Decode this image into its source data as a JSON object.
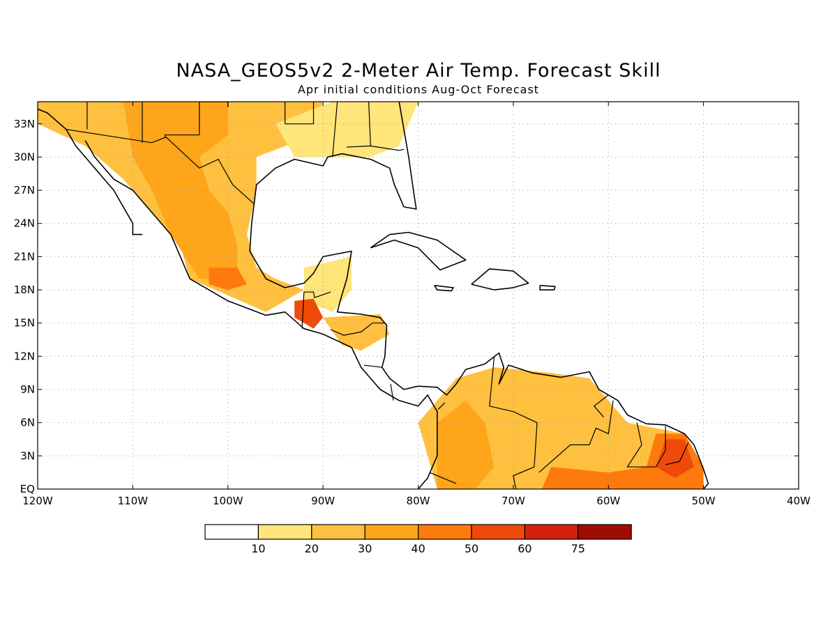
{
  "title": "NASA_GEOS5v2 2-Meter Air Temp. Forecast Skill",
  "subtitle": "Apr initial conditions  Aug-Oct Forecast",
  "map": {
    "lon_range": [
      -120,
      -40
    ],
    "lat_range": [
      0,
      35
    ],
    "x_tick_labels": [
      "120W",
      "110W",
      "100W",
      "90W",
      "80W",
      "70W",
      "60W",
      "50W",
      "40W"
    ],
    "y_tick_labels": [
      "EQ",
      "3N",
      "6N",
      "9N",
      "12N",
      "15N",
      "18N",
      "21N",
      "24N",
      "27N",
      "30N",
      "33N"
    ],
    "grid": true
  },
  "legend": {
    "levels": [
      "10",
      "20",
      "30",
      "40",
      "50",
      "60",
      "75"
    ],
    "colors": [
      "#ffffff",
      "#ffe57a",
      "#ffc040",
      "#ffa51a",
      "#ff7a0d",
      "#f04a0a",
      "#d4200a",
      "#a00c05"
    ]
  },
  "skill_regions": [
    {
      "name": "mexico-north",
      "level": 2,
      "lonlat": [
        [
          -120,
          35
        ],
        [
          -90,
          35
        ],
        [
          -91,
          32
        ],
        [
          -97,
          30
        ],
        [
          -97,
          27
        ],
        [
          -98,
          23
        ],
        [
          -97,
          20
        ],
        [
          -95,
          19
        ],
        [
          -92,
          18
        ],
        [
          -96,
          16
        ],
        [
          -104,
          19
        ],
        [
          -105,
          22
        ],
        [
          -108,
          25
        ],
        [
          -111,
          28
        ],
        [
          -115,
          31
        ],
        [
          -120,
          33
        ]
      ]
    },
    {
      "name": "mexico-core",
      "level": 3,
      "lonlat": [
        [
          -111,
          35
        ],
        [
          -100,
          35
        ],
        [
          -100,
          32
        ],
        [
          -103,
          30
        ],
        [
          -102,
          27
        ],
        [
          -100,
          25
        ],
        [
          -99,
          22
        ],
        [
          -99,
          19
        ],
        [
          -103,
          19
        ],
        [
          -106,
          23
        ],
        [
          -108,
          27
        ],
        [
          -110,
          30
        ]
      ]
    },
    {
      "name": "us-southeast",
      "level": 1,
      "lonlat": [
        [
          -89,
          35
        ],
        [
          -80,
          35
        ],
        [
          -82,
          31
        ],
        [
          -85,
          30
        ],
        [
          -89,
          30
        ],
        [
          -93,
          30
        ],
        [
          -95,
          33
        ]
      ]
    },
    {
      "name": "yucatan",
      "level": 1,
      "lonlat": [
        [
          -92,
          20
        ],
        [
          -87,
          21
        ],
        [
          -87,
          18
        ],
        [
          -89,
          16
        ],
        [
          -92,
          17
        ]
      ]
    },
    {
      "name": "south-mexico-hot",
      "level": 4,
      "lonlat": [
        [
          -102,
          20
        ],
        [
          -99,
          20
        ],
        [
          -98,
          18.5
        ],
        [
          -100,
          18
        ],
        [
          -102,
          18.5
        ]
      ]
    },
    {
      "name": "guatemala-hot",
      "level": 5,
      "lonlat": [
        [
          -93,
          17
        ],
        [
          -91,
          17.2
        ],
        [
          -90,
          15.5
        ],
        [
          -91,
          14.5
        ],
        [
          -93,
          15.5
        ]
      ]
    },
    {
      "name": "central-america",
      "level": 2,
      "lonlat": [
        [
          -90,
          15.5
        ],
        [
          -84,
          15.8
        ],
        [
          -83,
          14
        ],
        [
          -86,
          12.5
        ],
        [
          -88,
          13
        ]
      ]
    },
    {
      "name": "sa-main",
      "level": 2,
      "lonlat": [
        [
          -78,
          8
        ],
        [
          -76,
          10
        ],
        [
          -72,
          11
        ],
        [
          -66,
          10.5
        ],
        [
          -62,
          10
        ],
        [
          -60,
          8
        ],
        [
          -58,
          6
        ],
        [
          -52,
          5
        ],
        [
          -50,
          1
        ],
        [
          -50,
          0
        ],
        [
          -78,
          0
        ],
        [
          -79,
          3
        ],
        [
          -80,
          6
        ]
      ]
    },
    {
      "name": "sa-west-orange",
      "level": 3,
      "lonlat": [
        [
          -78,
          6
        ],
        [
          -75,
          8
        ],
        [
          -73,
          6
        ],
        [
          -72,
          2
        ],
        [
          -74,
          0
        ],
        [
          -78,
          0
        ],
        [
          -78,
          3
        ]
      ]
    },
    {
      "name": "sa-southeast-hot",
      "level": 4,
      "lonlat": [
        [
          -66,
          2
        ],
        [
          -60,
          1.5
        ],
        [
          -56,
          2
        ],
        [
          -55,
          5
        ],
        [
          -52,
          5
        ],
        [
          -50,
          2
        ],
        [
          -50,
          0
        ],
        [
          -67,
          0
        ]
      ]
    },
    {
      "name": "amapa-hot",
      "level": 5,
      "lonlat": [
        [
          -54,
          4.5
        ],
        [
          -52,
          4.5
        ],
        [
          -51,
          2
        ],
        [
          -53,
          1
        ],
        [
          -55,
          2
        ]
      ]
    }
  ],
  "coastlines": [
    [
      [
        -122,
        35
      ],
      [
        -119,
        34
      ],
      [
        -117,
        32.5
      ],
      [
        -116,
        31
      ],
      [
        -114,
        29
      ],
      [
        -112,
        27
      ],
      [
        -110,
        24
      ],
      [
        -110,
        23
      ],
      [
        -109,
        23
      ]
    ],
    [
      [
        -115,
        31.5
      ],
      [
        -114,
        30
      ],
      [
        -112,
        28
      ],
      [
        -110,
        27
      ],
      [
        -109,
        26
      ],
      [
        -108,
        25
      ],
      [
        -106,
        23
      ],
      [
        -105,
        21
      ],
      [
        -104,
        19
      ],
      [
        -100,
        17
      ],
      [
        -96,
        15.7
      ],
      [
        -94,
        16
      ],
      [
        -92,
        14.5
      ],
      [
        -90,
        14
      ],
      [
        -88,
        13.2
      ],
      [
        -87,
        12.8
      ],
      [
        -86,
        11
      ],
      [
        -85,
        10
      ],
      [
        -84,
        9
      ],
      [
        -82,
        8
      ],
      [
        -80,
        7.5
      ],
      [
        -79,
        8.5
      ],
      [
        -78,
        7
      ],
      [
        -78,
        3
      ],
      [
        -79,
        1
      ],
      [
        -80,
        0
      ]
    ],
    [
      [
        -82,
        35
      ],
      [
        -81,
        30
      ],
      [
        -80.5,
        27
      ],
      [
        -80.2,
        25.3
      ],
      [
        -81.5,
        25.5
      ],
      [
        -82.5,
        27.5
      ],
      [
        -83,
        29
      ],
      [
        -85,
        29.8
      ],
      [
        -88,
        30.3
      ],
      [
        -89.5,
        30
      ],
      [
        -90,
        29.2
      ],
      [
        -93,
        29.8
      ],
      [
        -95,
        29
      ],
      [
        -97,
        27.5
      ],
      [
        -97.5,
        24
      ],
      [
        -97.7,
        21.5
      ],
      [
        -96,
        19
      ],
      [
        -94,
        18.2
      ],
      [
        -92,
        18.6
      ],
      [
        -91,
        19.5
      ],
      [
        -90,
        21
      ],
      [
        -87,
        21.5
      ],
      [
        -87.5,
        19
      ],
      [
        -88.2,
        17
      ],
      [
        -88.5,
        16
      ],
      [
        -86,
        15.8
      ],
      [
        -84,
        15.5
      ],
      [
        -83.3,
        14.8
      ],
      [
        -83.5,
        12
      ],
      [
        -83.8,
        11
      ],
      [
        -83,
        10
      ],
      [
        -81.5,
        9
      ],
      [
        -80,
        9.3
      ],
      [
        -78,
        9.2
      ],
      [
        -77,
        8.5
      ],
      [
        -76,
        9.5
      ],
      [
        -75,
        10.8
      ],
      [
        -73,
        11.3
      ],
      [
        -71.5,
        12.3
      ],
      [
        -71,
        11
      ],
      [
        -71.5,
        9.5
      ],
      [
        -70.5,
        11.2
      ],
      [
        -68,
        10.5
      ],
      [
        -65,
        10.1
      ],
      [
        -62,
        10.6
      ],
      [
        -61,
        9
      ],
      [
        -59,
        8
      ],
      [
        -58,
        6.7
      ],
      [
        -56,
        5.9
      ],
      [
        -54,
        5.8
      ],
      [
        -52,
        5
      ],
      [
        -51,
        4
      ],
      [
        -50,
        1.8
      ],
      [
        -49.5,
        0.5
      ],
      [
        -50,
        0
      ]
    ],
    [
      [
        -85,
        21.8
      ],
      [
        -83,
        23
      ],
      [
        -81,
        23.2
      ],
      [
        -78,
        22.5
      ],
      [
        -75,
        20.7
      ],
      [
        -77.7,
        19.8
      ],
      [
        -80,
        21.8
      ],
      [
        -82.5,
        22.5
      ],
      [
        -85,
        21.8
      ]
    ],
    [
      [
        -74.4,
        18.5
      ],
      [
        -72.5,
        19.9
      ],
      [
        -70,
        19.7
      ],
      [
        -68.4,
        18.6
      ],
      [
        -70,
        18.2
      ],
      [
        -72,
        18
      ],
      [
        -74.4,
        18.5
      ]
    ],
    [
      [
        -78.3,
        18.4
      ],
      [
        -76.3,
        18.2
      ],
      [
        -76.5,
        17.9
      ],
      [
        -78,
        18
      ],
      [
        -78.3,
        18.4
      ]
    ],
    [
      [
        -67.2,
        18.4
      ],
      [
        -65.6,
        18.3
      ],
      [
        -65.7,
        18
      ],
      [
        -67.2,
        18
      ],
      [
        -67.2,
        18.4
      ]
    ]
  ],
  "borders": [
    [
      [
        -117,
        32.5
      ],
      [
        -108,
        31.3
      ],
      [
        -106.5,
        31.8
      ],
      [
        -103,
        29
      ],
      [
        -101,
        29.8
      ],
      [
        -99.5,
        27.5
      ],
      [
        -97.3,
        25.8
      ]
    ],
    [
      [
        -92.2,
        14.5
      ],
      [
        -92,
        17.8
      ],
      [
        -91,
        17.8
      ],
      [
        -90.9,
        17.3
      ],
      [
        -89.2,
        17.8
      ]
    ],
    [
      [
        -89.2,
        14.4
      ],
      [
        -87.8,
        13.9
      ],
      [
        -86,
        14.2
      ],
      [
        -84.8,
        15
      ],
      [
        -83.5,
        15
      ]
    ],
    [
      [
        -83.8,
        11
      ],
      [
        -85.7,
        11.2
      ]
    ],
    [
      [
        -82.9,
        9.5
      ],
      [
        -82.6,
        8
      ]
    ],
    [
      [
        -77.2,
        7.8
      ],
      [
        -77.9,
        7.2
      ]
    ],
    [
      [
        -72,
        12
      ],
      [
        -72.5,
        7.5
      ],
      [
        -70,
        7
      ],
      [
        -67.5,
        6
      ],
      [
        -67.8,
        2
      ],
      [
        -70,
        1.2
      ],
      [
        -69.5,
        -1
      ]
    ],
    [
      [
        -67.3,
        1.5
      ],
      [
        -64,
        4
      ],
      [
        -62,
        4
      ],
      [
        -61.3,
        5.5
      ],
      [
        -60,
        5
      ],
      [
        -59.5,
        8
      ]
    ],
    [
      [
        -60,
        8.5
      ],
      [
        -61.5,
        7.5
      ],
      [
        -60.5,
        6.5
      ]
    ],
    [
      [
        -57,
        6
      ],
      [
        -56.5,
        4
      ],
      [
        -58,
        2
      ],
      [
        -55,
        2
      ],
      [
        -54,
        3.5
      ],
      [
        -54,
        5.7
      ]
    ],
    [
      [
        -51.6,
        4.2
      ],
      [
        -52.5,
        2.5
      ],
      [
        -54,
        2.2
      ]
    ],
    [
      [
        -78.8,
        1.5
      ],
      [
        -76,
        0.5
      ]
    ],
    [
      [
        -114.8,
        32.5
      ],
      [
        -114.8,
        35
      ]
    ],
    [
      [
        -109,
        31.3
      ],
      [
        -109,
        35
      ]
    ],
    [
      [
        -103,
        32
      ],
      [
        -103,
        35
      ],
      [
        -100,
        35
      ],
      [
        -100,
        34.5
      ]
    ],
    [
      [
        -94,
        33
      ],
      [
        -94,
        35
      ]
    ],
    [
      [
        -91,
        33
      ],
      [
        -91,
        35
      ]
    ],
    [
      [
        -89,
        30
      ],
      [
        -88.5,
        35
      ]
    ],
    [
      [
        -85,
        31
      ],
      [
        -85.2,
        35
      ]
    ],
    [
      [
        -87.5,
        30.9
      ],
      [
        -85,
        31
      ],
      [
        -82,
        30.6
      ],
      [
        -81.5,
        30.7
      ]
    ],
    [
      [
        -94,
        33
      ],
      [
        -91,
        33
      ]
    ],
    [
      [
        -103,
        32
      ],
      [
        -106.6,
        32
      ],
      [
        -106.6,
        31.8
      ]
    ]
  ]
}
